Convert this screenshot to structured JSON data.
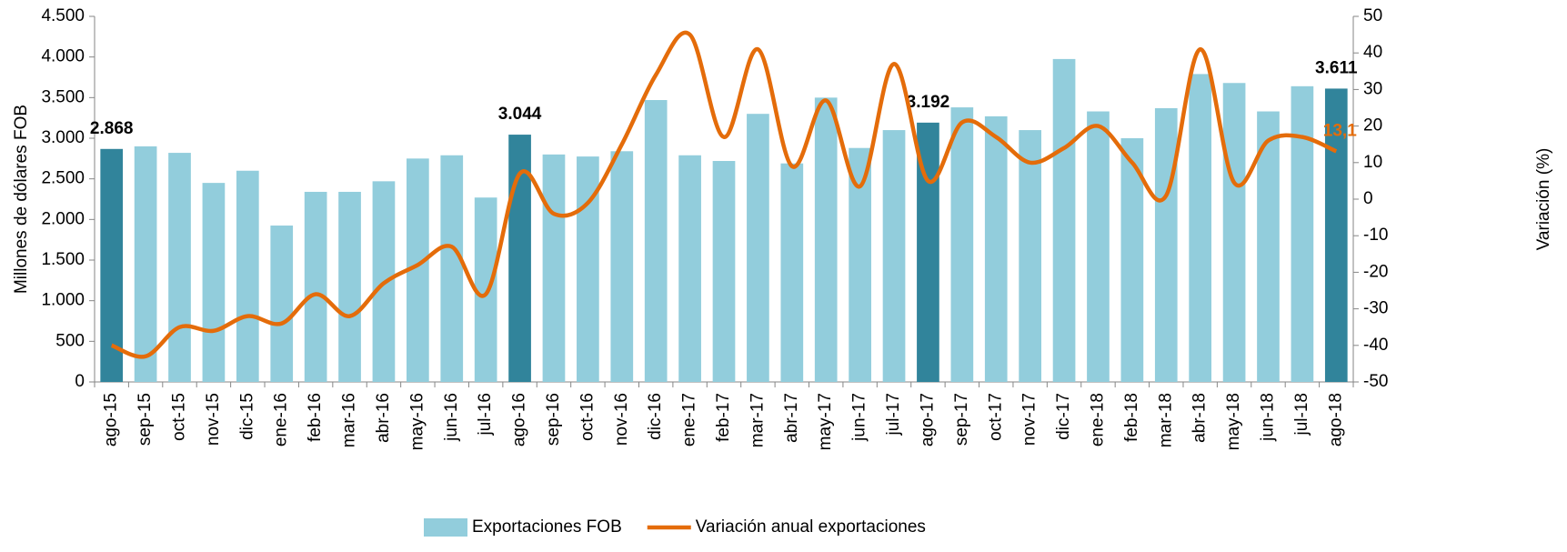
{
  "chart_data": {
    "type": "bar",
    "y_label": "Millones de dólares  FOB",
    "y2_label": "Variación (%)",
    "categories": [
      "ago-15",
      "sep-15",
      "oct-15",
      "nov-15",
      "dic-15",
      "ene-16",
      "feb-16",
      "mar-16",
      "abr-16",
      "may-16",
      "jun-16",
      "jul-16",
      "ago-16",
      "sep-16",
      "oct-16",
      "nov-16",
      "dic-16",
      "ene-17",
      "feb-17",
      "mar-17",
      "abr-17",
      "may-17",
      "jun-17",
      "jul-17",
      "ago-17",
      "sep-17",
      "oct-17",
      "nov-17",
      "dic-17",
      "ene-18",
      "feb-18",
      "mar-18",
      "abr-18",
      "may-18",
      "jun-18",
      "jul-18",
      "ago-18"
    ],
    "series": [
      {
        "name": "Exportaciones FOB",
        "type": "bar",
        "color": "#92cddc",
        "highlight_color": "#31849b",
        "values": [
          2868,
          2900,
          2820,
          2450,
          2600,
          1925,
          2340,
          2340,
          2470,
          2750,
          2790,
          2270,
          3044,
          2800,
          2775,
          2840,
          3470,
          2790,
          2720,
          3300,
          2690,
          3500,
          2880,
          3100,
          3192,
          3380,
          3270,
          3100,
          3975,
          3330,
          3000,
          3370,
          3790,
          3680,
          3330,
          3640,
          3611
        ],
        "value_labels": [
          "2.868",
          null,
          null,
          null,
          null,
          null,
          null,
          null,
          null,
          null,
          null,
          null,
          "3.044",
          null,
          null,
          null,
          null,
          null,
          null,
          null,
          null,
          null,
          null,
          null,
          "3.192",
          null,
          null,
          null,
          null,
          null,
          null,
          null,
          null,
          null,
          null,
          null,
          "3.611"
        ]
      },
      {
        "name": "Variación anual exportaciones",
        "type": "line",
        "axis": "y2",
        "color": "#e46c0a",
        "values": [
          -40,
          -43,
          -35,
          -36,
          -32,
          -34,
          -26,
          -32,
          -23,
          -18,
          -13,
          -26,
          7,
          -4,
          -1,
          15,
          34,
          45,
          17,
          41,
          9,
          27,
          3.5,
          37,
          5,
          21,
          17,
          10,
          14,
          20,
          10,
          1,
          41,
          4.5,
          16,
          17,
          13.1
        ],
        "value_labels": [
          null,
          null,
          null,
          null,
          null,
          null,
          null,
          null,
          null,
          null,
          null,
          null,
          null,
          null,
          null,
          null,
          null,
          null,
          null,
          null,
          null,
          null,
          null,
          null,
          null,
          null,
          null,
          null,
          null,
          null,
          null,
          null,
          null,
          null,
          null,
          null,
          "13,1"
        ]
      }
    ],
    "ylim": [
      0,
      4500
    ],
    "yticks": [
      0,
      500,
      {
        "value": 1000,
        "label": "1.000"
      },
      {
        "value": 1500,
        "label": "1.500"
      },
      {
        "value": 2000,
        "label": "2.000"
      },
      {
        "value": 2500,
        "label": "2.500"
      },
      {
        "value": 3000,
        "label": "3.000"
      },
      {
        "value": 3500,
        "label": "3.500"
      },
      {
        "value": 4000,
        "label": "4.000"
      },
      {
        "value": 4500,
        "label": "4.500"
      }
    ],
    "y2lim": [
      -50,
      50
    ],
    "y2ticks": [
      -50,
      -40,
      -30,
      -20,
      -10,
      0,
      10,
      20,
      30,
      40,
      50
    ],
    "legend": "bottom"
  }
}
